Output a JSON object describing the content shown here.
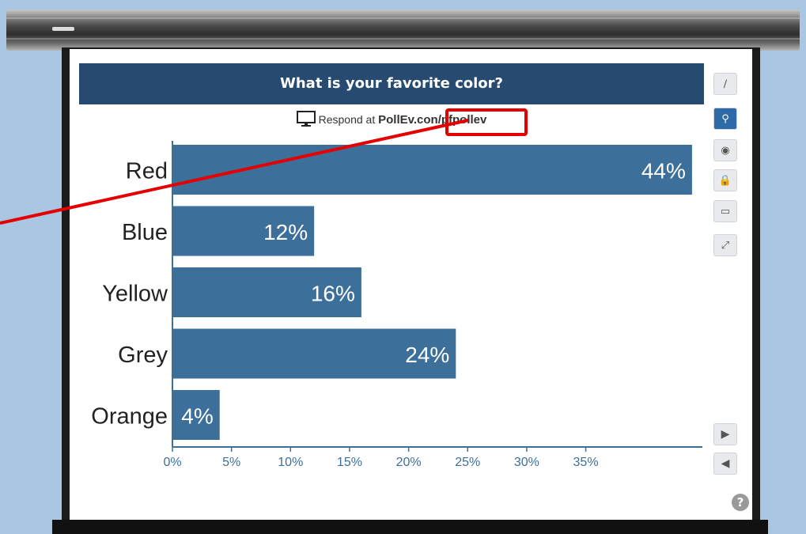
{
  "poll": {
    "title": "What is your favorite color?",
    "respond_prefix": "Respond at ",
    "respond_site_a": "PollEv.co",
    "respond_site_b": "n/pfpollev"
  },
  "chart_data": {
    "type": "bar",
    "orientation": "horizontal",
    "title": "What is your favorite color?",
    "categories": [
      "Red",
      "Blue",
      "Yellow",
      "Grey",
      "Orange"
    ],
    "values": [
      44,
      12,
      16,
      24,
      4
    ],
    "value_labels": [
      "44%",
      "12%",
      "16%",
      "24%",
      "4%"
    ],
    "xlim": [
      0,
      45
    ],
    "xticks": [
      0,
      5,
      10,
      15,
      20,
      25,
      30,
      35
    ],
    "xtick_labels": [
      "0%",
      "5%",
      "10%",
      "15%",
      "20%",
      "25%",
      "30%",
      "35%"
    ],
    "bar_color": "#3d6f9b",
    "grid": false
  },
  "toolbar": {
    "items": [
      {
        "name": "pencil-icon",
        "glyph": "∕"
      },
      {
        "name": "funnel-icon",
        "glyph": "⚲"
      },
      {
        "name": "hide-icon",
        "glyph": "◉"
      },
      {
        "name": "lock-icon",
        "glyph": "🔒"
      },
      {
        "name": "archive-icon",
        "glyph": "▭"
      },
      {
        "name": "fullscreen-icon",
        "glyph": "⤢"
      }
    ],
    "next_glyph": "▶",
    "prev_glyph": "◀",
    "help_glyph": "?"
  },
  "colors": {
    "title_bar": "#274b70",
    "bar": "#3d6f9b",
    "highlight": "#e50000",
    "background": "#a9c6e3"
  }
}
